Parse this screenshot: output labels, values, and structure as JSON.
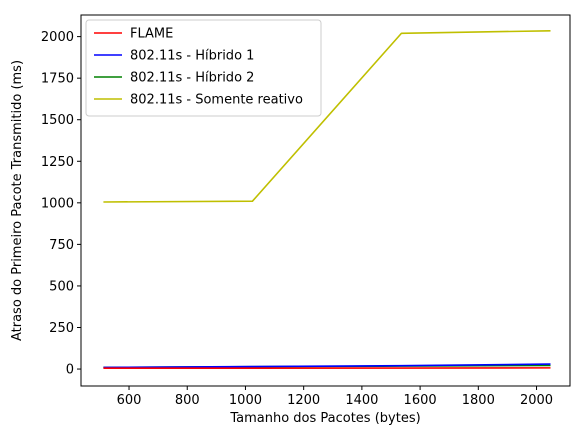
{
  "chart_data": {
    "type": "line",
    "title": "",
    "xlabel": "Tamanho dos Pacotes (bytes)",
    "ylabel": "Atraso do Primeiro Pacote Transmitido (ms)",
    "xlim": [
      435,
      2115
    ],
    "ylim": [
      -102,
      2130
    ],
    "xticks": [
      600,
      800,
      1000,
      1200,
      1400,
      1600,
      1800,
      2000
    ],
    "yticks": [
      0,
      250,
      500,
      750,
      1000,
      1250,
      1500,
      1750,
      2000
    ],
    "grid": false,
    "legend_position": "top-left",
    "x": [
      512,
      1024,
      1536,
      2048
    ],
    "series": [
      {
        "name": "FLAME",
        "color": "#ff0000",
        "values": [
          5,
          5,
          6,
          7
        ]
      },
      {
        "name": "802.11s - Híbrido 1",
        "color": "#0000ff",
        "values": [
          10,
          15,
          20,
          30
        ]
      },
      {
        "name": "802.11s - Híbrido 2",
        "color": "#008000",
        "values": [
          10,
          14,
          18,
          22
        ]
      },
      {
        "name": "802.11s - Somente reativo",
        "color": "#bfbf00",
        "values": [
          1005,
          1010,
          2020,
          2035
        ]
      }
    ]
  }
}
